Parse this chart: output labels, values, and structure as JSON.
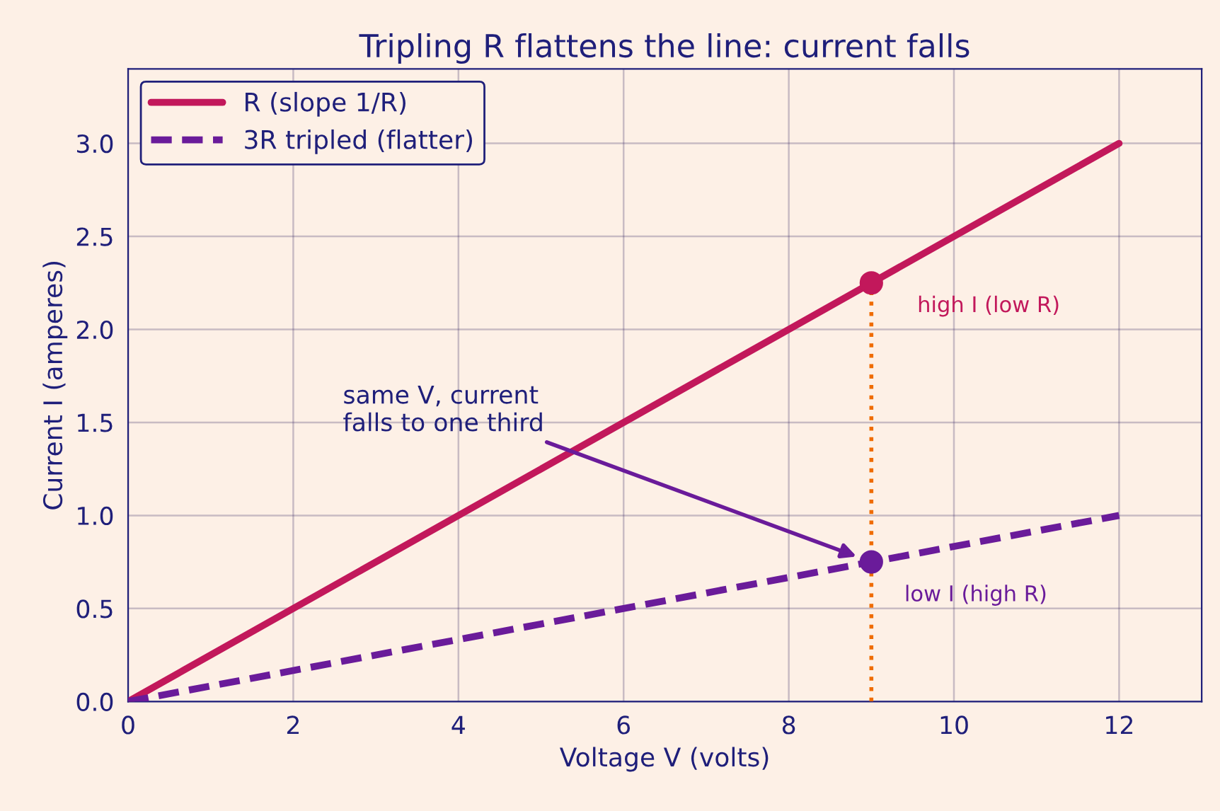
{
  "chart_data": {
    "type": "line",
    "title": "Tripling R flattens the line: current falls",
    "xlabel": "Voltage V (volts)",
    "ylabel": "Current I (amperes)",
    "series": [
      {
        "name": "R (slope 1/R)",
        "color": "#c2185b",
        "x": [
          0,
          12
        ],
        "values": [
          0,
          3.0
        ],
        "line_style": "solid"
      },
      {
        "name": "3R tripled (flatter)",
        "color": "#6a1b9a",
        "x": [
          0,
          12
        ],
        "values": [
          0,
          1.0
        ],
        "line_style": "dashed"
      },
      {
        "type": "line",
        "color": "#ef6c00",
        "x": [
          9,
          9
        ],
        "values": [
          0,
          2.25
        ],
        "line_style": "dotted"
      },
      {
        "type": "scatter",
        "color": "#c2185b",
        "x": [
          9
        ],
        "values": [
          2.25
        ],
        "marker": "circle"
      },
      {
        "type": "scatter",
        "color": "#6a1b9a",
        "x": [
          9
        ],
        "values": [
          0.75
        ],
        "marker": "circle"
      }
    ],
    "annotations": [
      "high I (low R)",
      "low I (high R)",
      "same V, current\nfalls to one third"
    ],
    "xlim": [
      0,
      13
    ],
    "ylim": [
      0,
      3.4
    ],
    "xticks": [
      0,
      2,
      4,
      6,
      8,
      10,
      12
    ],
    "yticks": [
      {
        "value": 0,
        "label": "0.0"
      },
      0.5,
      {
        "value": 1,
        "label": "1.0"
      },
      1.5,
      {
        "value": 2,
        "label": "2.0"
      },
      2.5,
      {
        "value": 3,
        "label": "3.0"
      }
    ],
    "grid": true,
    "legend": "top left"
  }
}
